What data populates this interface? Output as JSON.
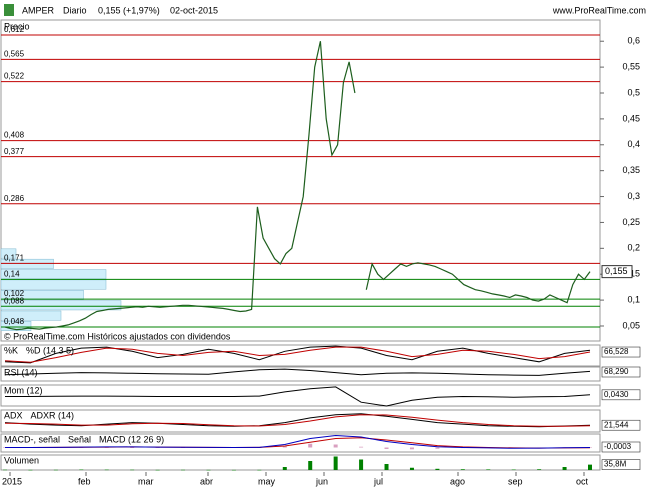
{
  "chart_data": {
    "type": "line",
    "symbol": "AMPER",
    "period": "Diario",
    "quote": "0,155 (+1,97%)",
    "date": "02-oct-2015",
    "source": "www.ProRealTime.com",
    "panel_label": "Precio",
    "footer": "© ProRealTime.com  Históricos ajustados con dividendos",
    "ylim": [
      0.021,
      0.641
    ],
    "yticks": [
      {
        "value": 0.05,
        "label": "0,05"
      },
      {
        "value": 0.1,
        "label": "0,1"
      },
      {
        "value": 0.15,
        "label": "0,15"
      },
      {
        "value": 0.2,
        "label": "0,2"
      },
      {
        "value": 0.25,
        "label": "0,25"
      },
      {
        "value": 0.3,
        "label": "0,3"
      },
      {
        "value": 0.35,
        "label": "0,35"
      },
      {
        "value": 0.4,
        "label": "0,4"
      },
      {
        "value": 0.45,
        "label": "0,45"
      },
      {
        "value": 0.5,
        "label": "0,5"
      },
      {
        "value": 0.55,
        "label": "0,55"
      },
      {
        "value": 0.6,
        "label": "0,6"
      }
    ],
    "last_price": {
      "value": 0.155,
      "label": "0,155"
    },
    "levels": [
      {
        "value": 0.612,
        "label": "0,612",
        "color": "#c00000"
      },
      {
        "value": 0.565,
        "label": "0,565",
        "color": "#c00000"
      },
      {
        "value": 0.522,
        "label": "0,522",
        "color": "#c00000"
      },
      {
        "value": 0.408,
        "label": "0,408",
        "color": "#c00000"
      },
      {
        "value": 0.377,
        "label": "0,377",
        "color": "#c00000"
      },
      {
        "value": 0.286,
        "label": "0,286",
        "color": "#c00000"
      },
      {
        "value": 0.171,
        "label": "0,171",
        "color": "#c00000"
      },
      {
        "value": 0.14,
        "label": "0,14",
        "color": "#008000"
      },
      {
        "value": 0.102,
        "label": "0,102",
        "color": "#008000"
      },
      {
        "value": 0.088,
        "label": "0,088",
        "color": "#008000"
      },
      {
        "value": 0.048,
        "label": "0,048",
        "color": "#008000"
      }
    ],
    "volume_profile": {
      "bins": [
        0.04,
        0.06,
        0.08,
        0.1,
        0.12,
        0.14,
        0.16,
        0.18,
        0.2
      ],
      "values": [
        20,
        40,
        80,
        55,
        70,
        70,
        35,
        10
      ],
      "xlim": [
        0,
        100
      ],
      "color": "#cfeefa"
    },
    "series": [
      {
        "color": "#1d5e1d",
        "values": [
          0.048,
          0.045,
          0.043,
          0.044,
          0.046,
          0.045,
          0.044,
          0.046,
          0.047,
          0.048,
          0.05,
          0.052,
          0.056,
          0.06,
          0.065,
          0.072,
          0.078,
          0.08,
          0.082,
          0.083,
          0.084,
          0.085,
          0.086,
          0.087,
          0.086,
          0.088,
          0.087,
          0.086,
          0.087,
          0.088,
          0.089,
          0.09,
          0.09,
          0.089,
          0.088,
          0.087,
          0.086,
          0.085,
          0.084,
          0.082,
          0.08,
          0.078,
          0.079,
          0.082,
          0.28,
          0.22,
          0.2,
          0.18,
          0.17,
          0.19,
          0.2,
          0.25,
          0.3,
          0.42,
          0.55,
          0.6,
          0.45,
          0.38,
          0.4,
          0.52,
          0.56,
          0.5,
          null,
          0.12,
          0.17,
          0.15,
          0.14,
          0.15,
          0.16,
          0.17,
          0.165,
          0.17,
          0.172,
          0.17,
          0.168,
          0.165,
          0.16,
          0.155,
          0.15,
          0.14,
          0.13,
          0.125,
          0.12,
          0.118,
          0.115,
          0.112,
          0.11,
          0.108,
          0.105,
          0.11,
          0.108,
          0.105,
          0.1,
          0.098,
          0.102,
          0.11,
          0.105,
          0.1,
          0.095,
          0.13,
          0.15,
          0.14,
          0.155
        ]
      }
    ],
    "x_labels": [
      "2015",
      "feb",
      "mar",
      "abr",
      "may",
      "jun",
      "jul",
      "ago",
      "sep",
      "oct"
    ],
    "indicators": [
      {
        "ylim": [
          0,
          100
        ],
        "current": {
          "value": 66.528,
          "label": "66,528"
        },
        "series": [
          {
            "name": "%K",
            "color": "#000000",
            "values": [
              20,
              15,
              60,
              85,
              90,
              70,
              40,
              55,
              80,
              60,
              30,
              70,
              90,
              95,
              85,
              50,
              30,
              70,
              85,
              60,
              40,
              20,
              60,
              75
            ]
          },
          {
            "name": "%D (14 3 5)",
            "color": "#c00000",
            "values": [
              25,
              18,
              40,
              65,
              85,
              80,
              60,
              50,
              65,
              70,
              50,
              55,
              75,
              90,
              90,
              70,
              45,
              55,
              75,
              70,
              55,
              35,
              45,
              66.528
            ]
          }
        ]
      },
      {
        "ylim": [
          0,
          100
        ],
        "current": {
          "value": 68.29,
          "label": "68,290"
        },
        "series": [
          {
            "name": "RSI (14)",
            "color": "#000000",
            "values": [
              45,
              50,
              55,
              60,
              58,
              55,
              52,
              50,
              48,
              65,
              80,
              85,
              75,
              60,
              45,
              55,
              58,
              55,
              50,
              45,
              42,
              40,
              55,
              68.29
            ]
          }
        ]
      },
      {
        "ylim": [
          -0.25,
          0.3
        ],
        "current": {
          "value": 0.043,
          "label": "0,0430"
        },
        "series": [
          {
            "name": "Mom (12)",
            "color": "#000000",
            "values": [
              0,
              0,
              0.005,
              0.01,
              0.01,
              0.005,
              0,
              0,
              0,
              0,
              0.01,
              0.12,
              0.2,
              0.25,
              -0.15,
              -0.25,
              -0.1,
              -0.02,
              0,
              -0.01,
              -0.02,
              -0.01,
              0,
              0.043
            ]
          }
        ]
      },
      {
        "ylim": [
          0,
          70
        ],
        "current": {
          "value": 21.544,
          "label": "21,544"
        },
        "series": [
          {
            "name": "ADX",
            "color": "#000000",
            "values": [
              30,
              25,
              22,
              20,
              25,
              30,
              28,
              24,
              20,
              18,
              20,
              30,
              45,
              55,
              58,
              50,
              40,
              30,
              25,
              20,
              18,
              17,
              19,
              21.544
            ]
          },
          {
            "name": "ADXR (14)",
            "color": "#c00000",
            "values": [
              28,
              27,
              25,
              22,
              22,
              26,
              28,
              27,
              23,
              20,
              19,
              24,
              35,
              48,
              55,
              54,
              47,
              38,
              30,
              24,
              20,
              18,
              18,
              20
            ]
          }
        ]
      },
      {
        "ylim": [
          -0.03,
          0.09
        ],
        "current": {
          "value": -0.0003,
          "label": "-0,0003"
        },
        "series": [
          {
            "name": "MACD-, señal",
            "color": "#d9a0c0",
            "values": [
              0,
              0,
              0,
              0.001,
              0.001,
              0,
              0,
              0,
              0,
              0,
              0,
              0.01,
              0.025,
              0.02,
              0.005,
              -0.01,
              -0.012,
              -0.008,
              -0.004,
              -0.003,
              -0.002,
              0,
              0.001,
              0.001
            ]
          },
          {
            "name": "Señal",
            "color": "#c00000",
            "values": [
              0,
              0,
              0.001,
              0.002,
              0.003,
              0.004,
              0.003,
              0.002,
              0.001,
              0,
              0.001,
              0.01,
              0.035,
              0.06,
              0.065,
              0.05,
              0.032,
              0.013,
              0.004,
              0,
              -0.003,
              -0.004,
              -0.003,
              -0.0013
            ]
          },
          {
            "name": "MACD (12 26 9)",
            "color": "#0000c0",
            "values": [
              0,
              0,
              0.001,
              0.003,
              0.004,
              0.004,
              0.003,
              0.002,
              0.001,
              0,
              0.001,
              0.02,
              0.06,
              0.08,
              0.07,
              0.04,
              0.02,
              0.005,
              0,
              -0.003,
              -0.005,
              -0.004,
              -0.002,
              -0.0003
            ]
          }
        ]
      },
      {
        "ylim": [
          0,
          100000000
        ],
        "bars": true,
        "current": {
          "value": 35800000,
          "label": "35,8M"
        },
        "series": [
          {
            "name": "Volumen",
            "color": "#008000",
            "values": [
              2000000,
              1000000,
              1500000,
              3000000,
              2500000,
              2000000,
              1000000,
              1500000,
              1000000,
              800000,
              1000000,
              20000000,
              60000000,
              90000000,
              70000000,
              40000000,
              15000000,
              8000000,
              5000000,
              4000000,
              3000000,
              5000000,
              20000000,
              35800000
            ]
          }
        ]
      }
    ]
  }
}
